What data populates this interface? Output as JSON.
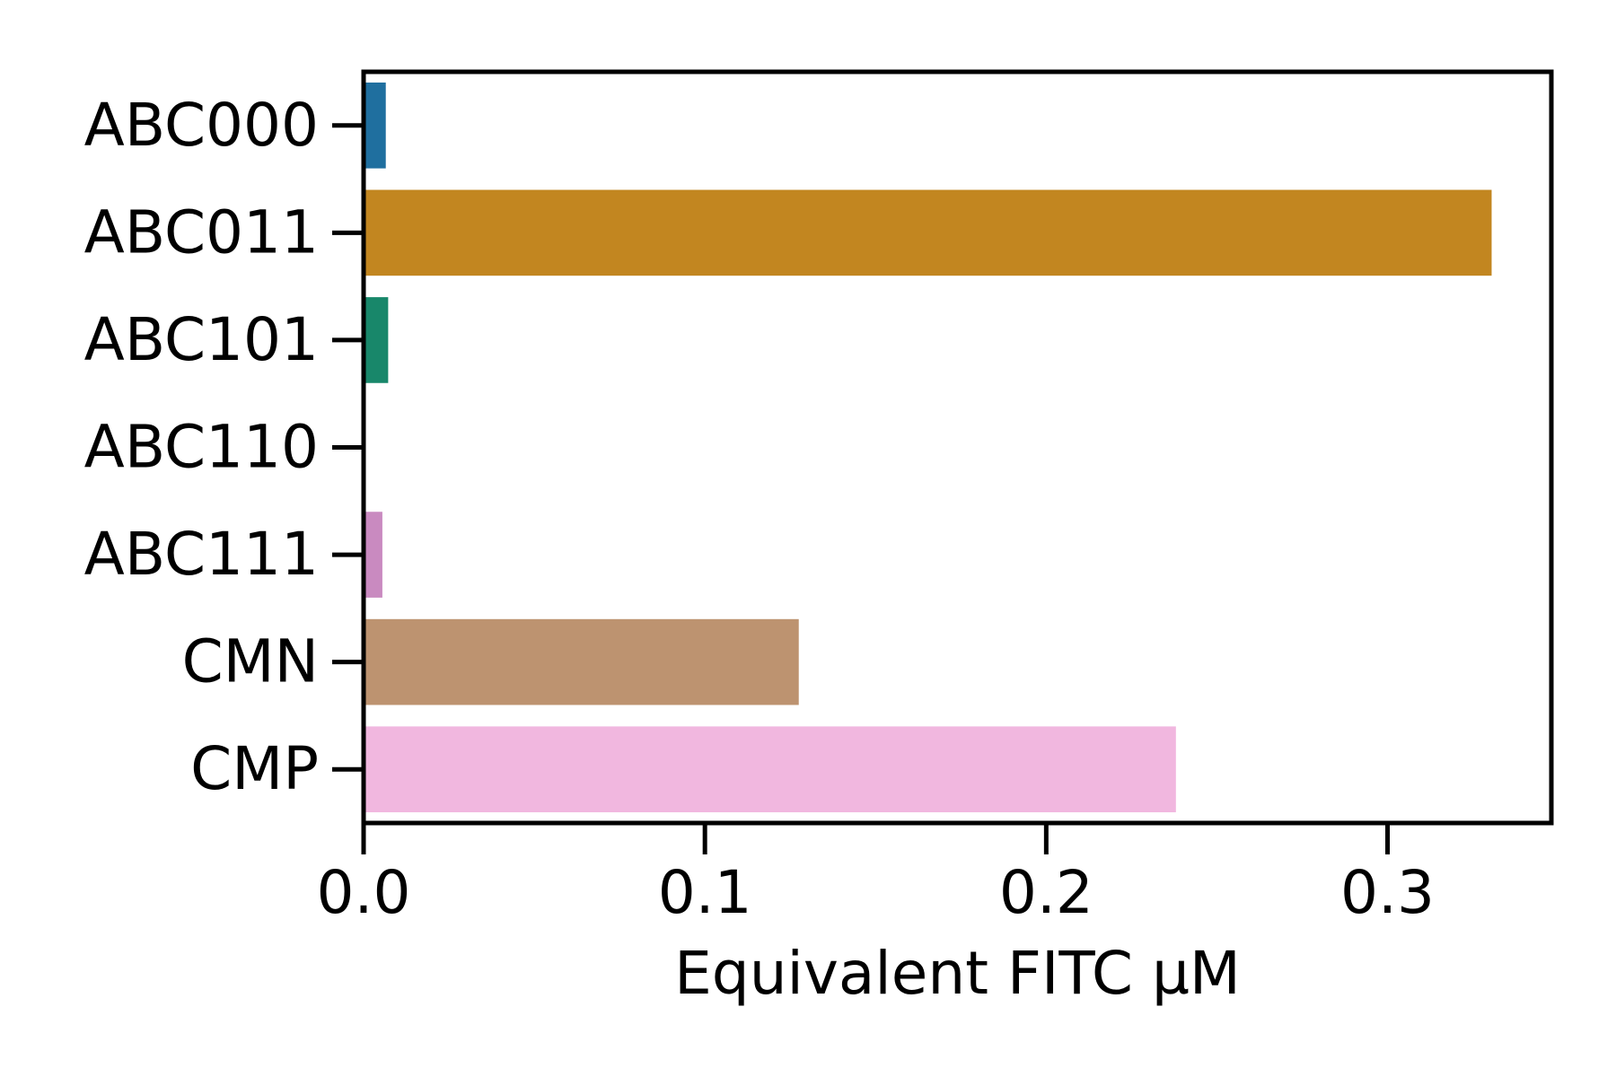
{
  "chart_data": {
    "type": "bar",
    "orientation": "horizontal",
    "categories": [
      "ABC000",
      "ABC011",
      "ABC101",
      "ABC110",
      "ABC111",
      "CMN",
      "CMP"
    ],
    "values": [
      0.0065,
      0.3305,
      0.0072,
      0.0,
      0.0055,
      0.1275,
      0.238
    ],
    "colors": [
      "#1f6f9f",
      "#c28620",
      "#18876a",
      "#ffffff",
      "#c98ac0",
      "#bd9370",
      "#f1b7df"
    ],
    "xlabel": "Equivalent FITC µM",
    "ylabel": "",
    "xlim": [
      0.0,
      0.348
    ],
    "xticks": [
      "0.0",
      "0.1",
      "0.2",
      "0.3"
    ],
    "grid": false
  }
}
